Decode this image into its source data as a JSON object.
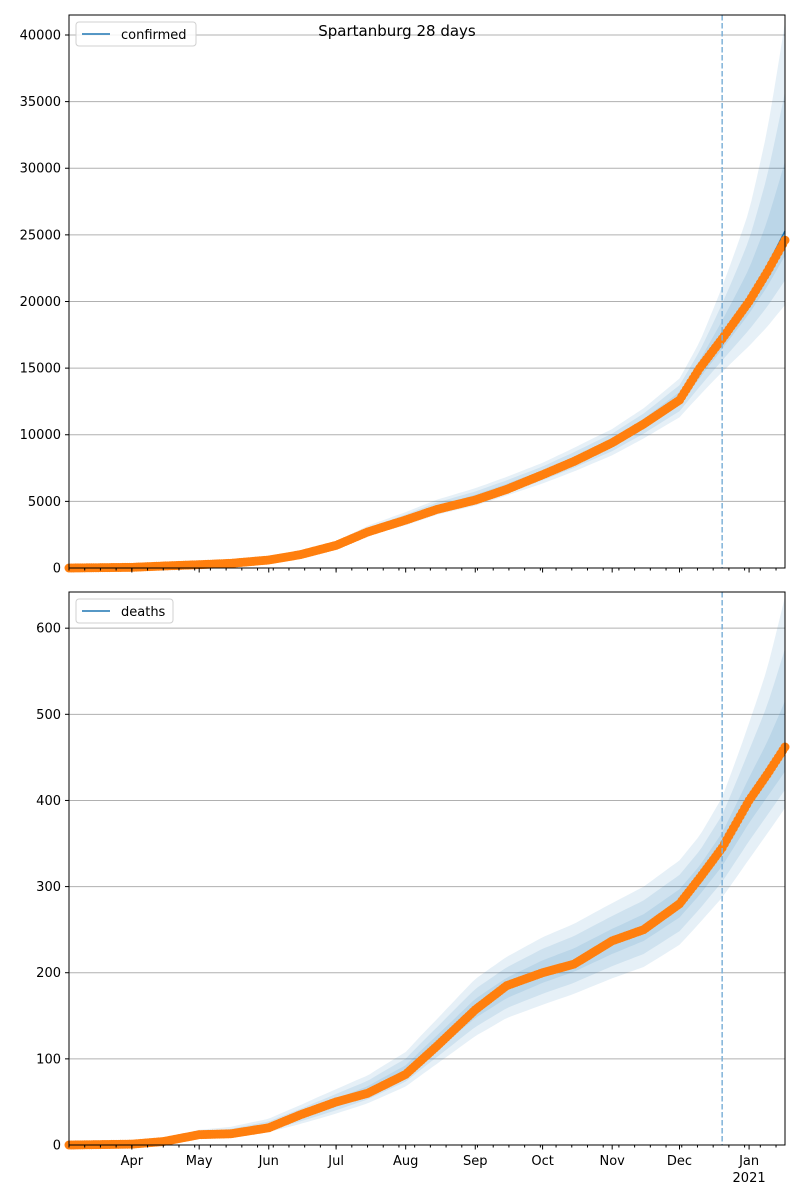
{
  "chart_data": [
    {
      "type": "line",
      "title": "Spartanburg 28 days",
      "legend": [
        "confirmed"
      ],
      "legend_position": "top-left",
      "ylim": [
        0,
        41500
      ],
      "yticks": [
        0,
        5000,
        10000,
        15000,
        20000,
        25000,
        30000,
        35000,
        40000
      ],
      "grid": "y",
      "forecast_start": "2020-12-20",
      "dates": [
        "2020-03-04",
        "2020-04-01",
        "2020-04-15",
        "2020-05-01",
        "2020-05-15",
        "2020-06-01",
        "2020-06-15",
        "2020-07-01",
        "2020-07-15",
        "2020-08-01",
        "2020-08-15",
        "2020-09-01",
        "2020-09-15",
        "2020-10-01",
        "2020-10-15",
        "2020-11-01",
        "2020-11-15",
        "2020-12-01",
        "2020-12-10",
        "2020-12-20",
        "2021-01-01",
        "2021-01-09",
        "2021-01-17"
      ],
      "observed": [
        0,
        50,
        150,
        250,
        350,
        600,
        1000,
        1700,
        2700,
        3600,
        4400,
        5100,
        5900,
        7000,
        8000,
        9400,
        10800,
        12600,
        15000,
        17200,
        20000,
        22200,
        24600
      ],
      "median": [
        0,
        50,
        150,
        250,
        350,
        600,
        1000,
        1700,
        2750,
        3650,
        4500,
        5250,
        6050,
        7050,
        8050,
        9400,
        10800,
        12700,
        14900,
        17300,
        20300,
        22600,
        25300
      ],
      "band_upper_ratio": [
        1.2,
        1.2,
        1.2,
        1.2,
        1.2,
        1.2,
        1.18,
        1.16,
        1.15,
        1.15,
        1.14,
        1.14,
        1.13,
        1.12,
        1.12,
        1.11,
        1.11,
        1.12,
        1.14,
        1.22,
        1.32,
        1.45,
        1.62
      ],
      "band_lower_ratio": [
        0.85,
        0.85,
        0.85,
        0.85,
        0.85,
        0.85,
        0.86,
        0.87,
        0.88,
        0.88,
        0.89,
        0.89,
        0.9,
        0.9,
        0.9,
        0.9,
        0.9,
        0.89,
        0.87,
        0.85,
        0.82,
        0.8,
        0.78
      ]
    },
    {
      "type": "line",
      "title": "",
      "legend": [
        "deaths"
      ],
      "legend_position": "top-left",
      "ylim": [
        0,
        642
      ],
      "yticks": [
        0,
        100,
        200,
        300,
        400,
        500,
        600
      ],
      "grid": "y",
      "forecast_start": "2020-12-20",
      "dates": [
        "2020-03-04",
        "2020-04-01",
        "2020-04-15",
        "2020-05-01",
        "2020-05-15",
        "2020-06-01",
        "2020-06-15",
        "2020-07-01",
        "2020-07-15",
        "2020-08-01",
        "2020-08-15",
        "2020-09-01",
        "2020-09-15",
        "2020-10-01",
        "2020-10-15",
        "2020-11-01",
        "2020-11-15",
        "2020-12-01",
        "2020-12-10",
        "2020-12-20",
        "2021-01-01",
        "2021-01-09",
        "2021-01-17"
      ],
      "observed": [
        0,
        1,
        4,
        12,
        13,
        20,
        35,
        50,
        60,
        82,
        115,
        157,
        185,
        200,
        210,
        237,
        250,
        280,
        310,
        345,
        400,
        430,
        462
      ],
      "median": [
        0,
        1,
        4,
        11,
        14,
        21,
        33,
        48,
        62,
        85,
        118,
        158,
        182,
        201,
        214,
        236,
        252,
        280,
        307,
        342,
        395,
        425,
        455
      ],
      "band_upper_ratio": [
        2.0,
        2.0,
        1.8,
        1.6,
        1.5,
        1.45,
        1.4,
        1.35,
        1.3,
        1.27,
        1.24,
        1.22,
        1.2,
        1.2,
        1.2,
        1.19,
        1.19,
        1.18,
        1.17,
        1.18,
        1.24,
        1.3,
        1.4
      ],
      "band_lower_ratio": [
        0.6,
        0.6,
        0.65,
        0.7,
        0.7,
        0.72,
        0.74,
        0.76,
        0.78,
        0.8,
        0.8,
        0.8,
        0.81,
        0.81,
        0.82,
        0.82,
        0.82,
        0.83,
        0.84,
        0.84,
        0.84,
        0.85,
        0.86
      ]
    }
  ],
  "x_month_labels": [
    {
      "date": "2020-04-01",
      "label": "Apr"
    },
    {
      "date": "2020-05-01",
      "label": "May"
    },
    {
      "date": "2020-06-01",
      "label": "Jun"
    },
    {
      "date": "2020-07-01",
      "label": "Jul"
    },
    {
      "date": "2020-08-01",
      "label": "Aug"
    },
    {
      "date": "2020-09-01",
      "label": "Sep"
    },
    {
      "date": "2020-10-01",
      "label": "Oct"
    },
    {
      "date": "2020-11-01",
      "label": "Nov"
    },
    {
      "date": "2020-12-01",
      "label": "Dec"
    },
    {
      "date": "2021-01-01",
      "label": "Jan",
      "sub": "2021"
    }
  ],
  "x_range": [
    "2020-03-04",
    "2021-01-17"
  ],
  "colors": {
    "median": "#1f77b4",
    "observed": "#ff7f0e",
    "band": "#1f77b4",
    "grid": "#b0b0b0",
    "forecast_line": "#7fb2d9"
  }
}
